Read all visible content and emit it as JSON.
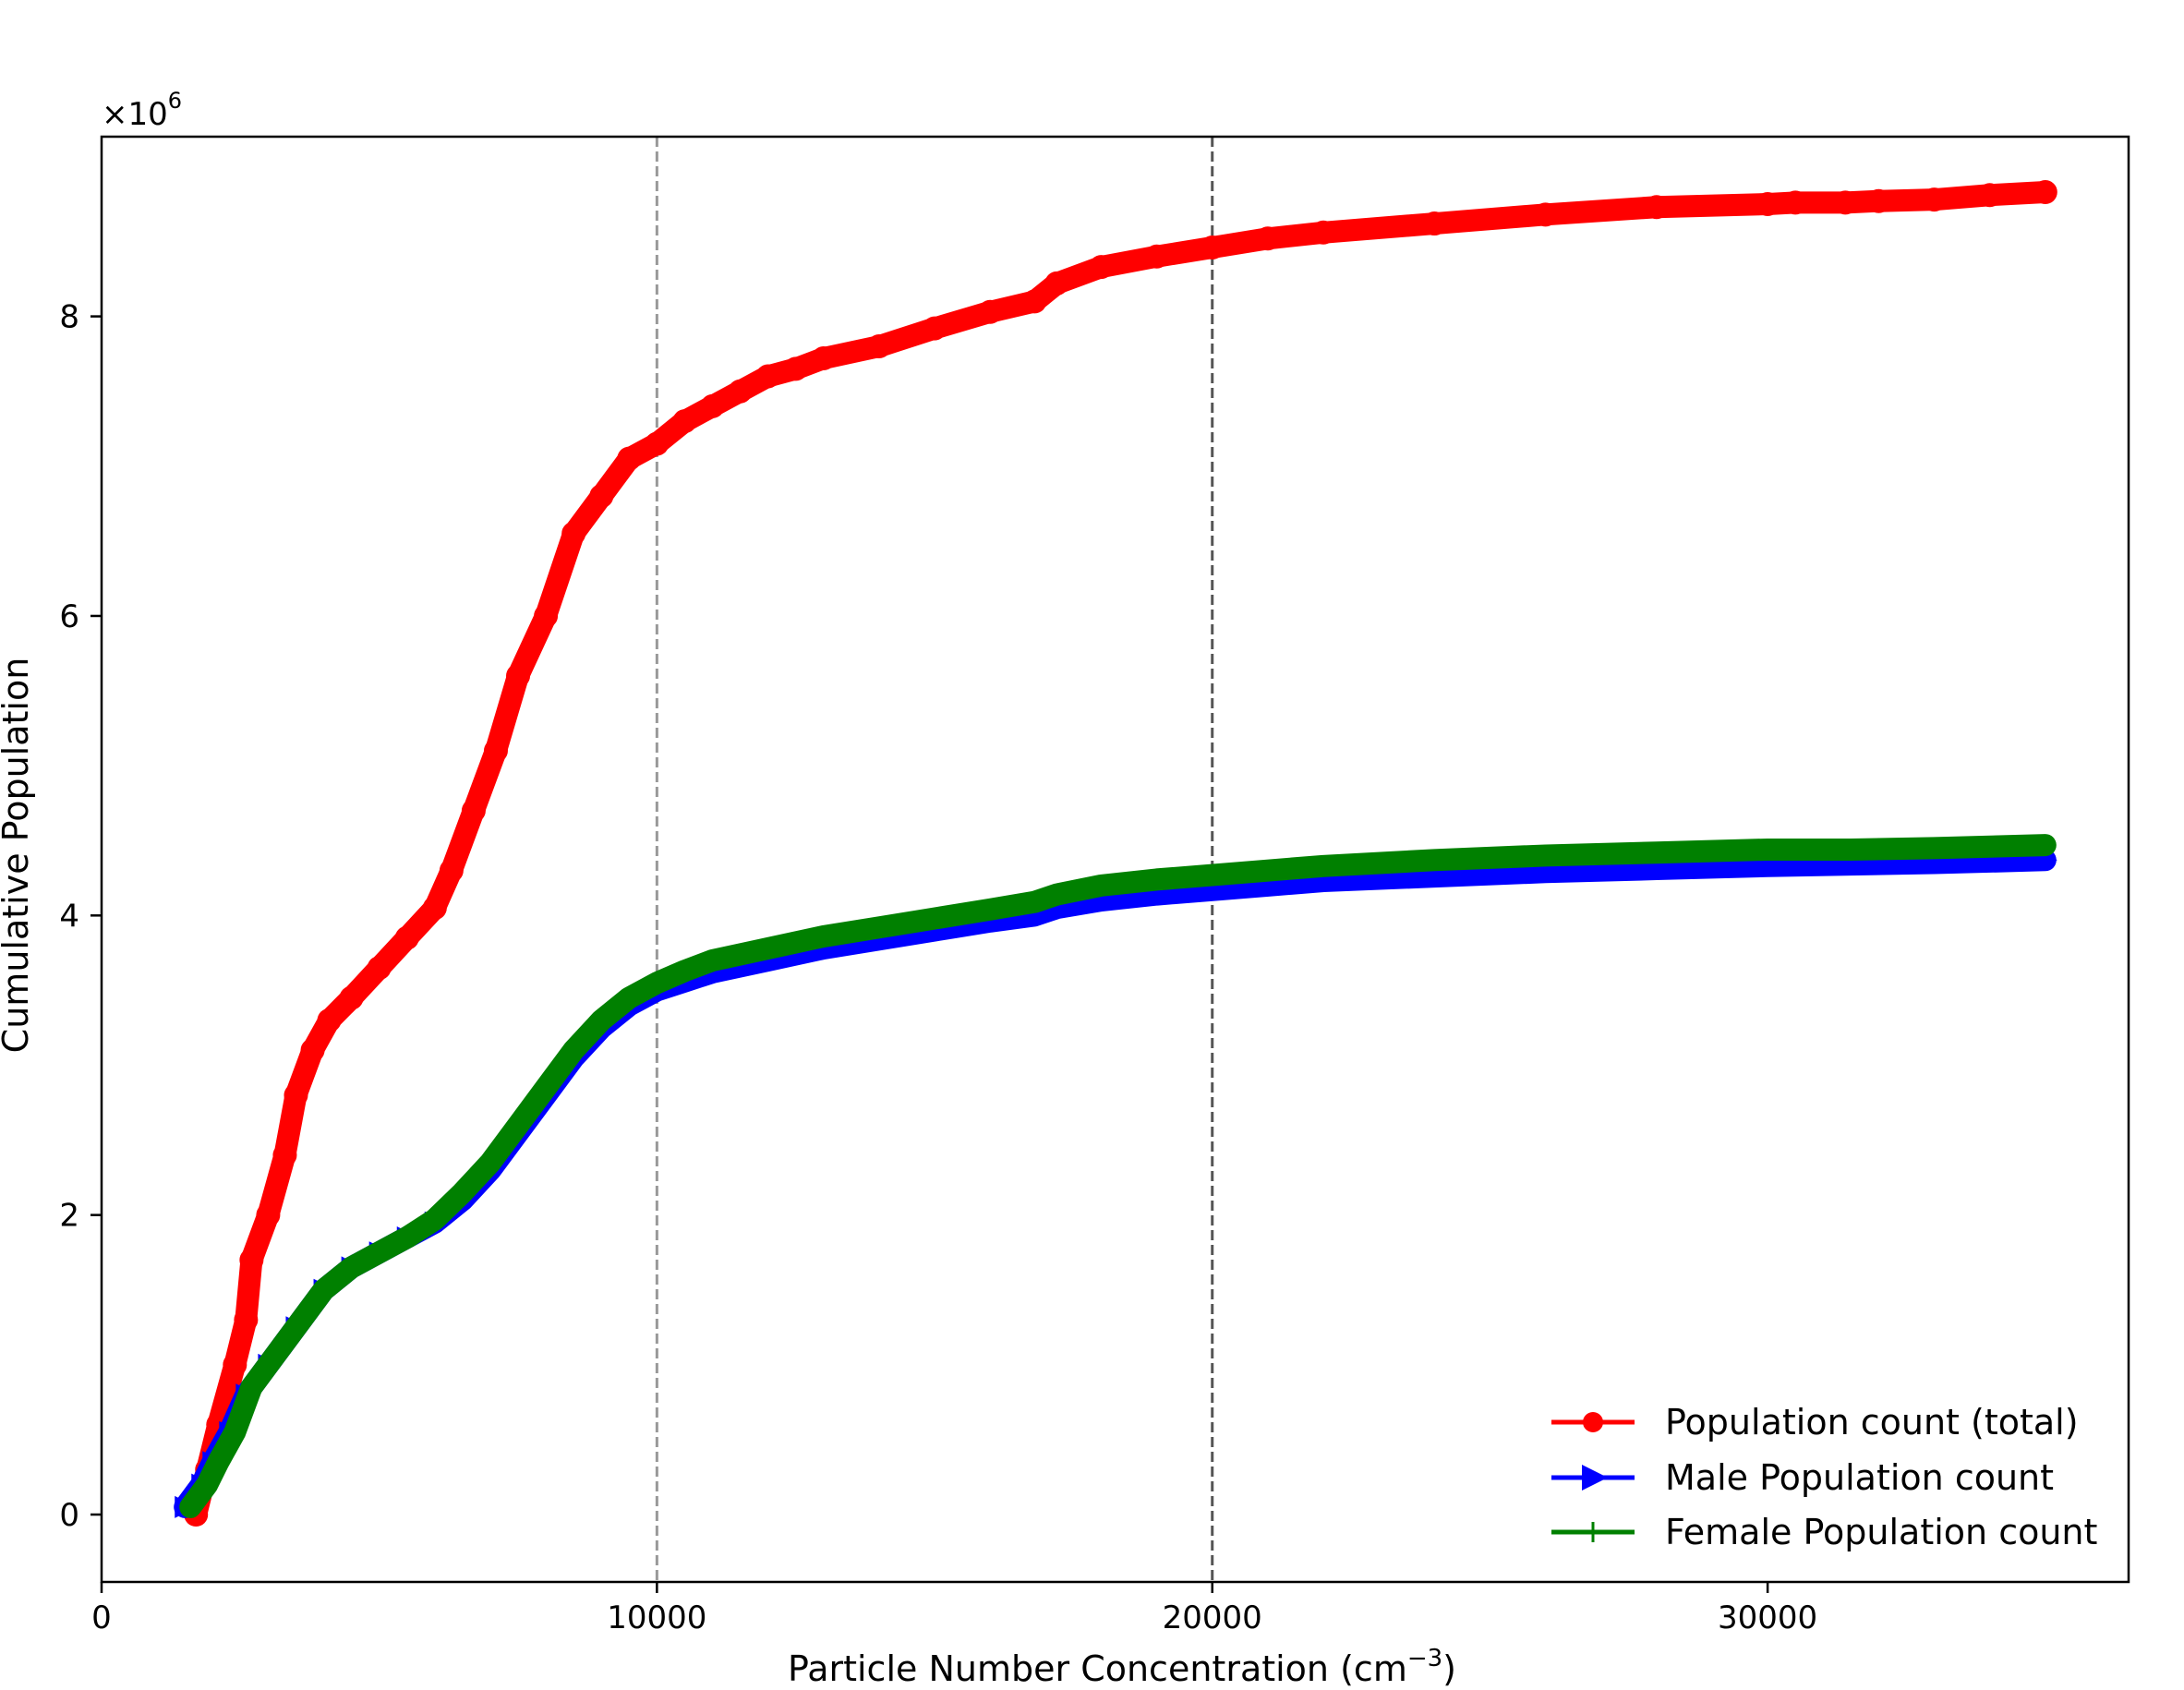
{
  "chart_data": {
    "type": "line",
    "xlabel": "Particle Number Concentration (cm",
    "xlabel_exponent": "−3",
    "xlabel_suffix": ")",
    "ylabel": "Cumulative Population",
    "offset_text": "×10",
    "offset_exponent": "6",
    "xlim": [
      0,
      36500
    ],
    "ylim": [
      -0.45,
      9.2
    ],
    "xticks": [
      0,
      10000,
      20000,
      30000
    ],
    "xtick_labels": [
      "0",
      "10000",
      "20000",
      "30000"
    ],
    "yticks": [
      0,
      2,
      4,
      6,
      8
    ],
    "ytick_labels": [
      "0",
      "2",
      "4",
      "6",
      "8"
    ],
    "reference_lines": [
      {
        "x": 10000,
        "color": "#999999"
      },
      {
        "x": 20000,
        "color": "#555555"
      }
    ],
    "legend_position": "lower right",
    "series": [
      {
        "name": "Population count (total)",
        "color": "#ff0000",
        "marker": "circle",
        "points": [
          [
            1700,
            0.0
          ],
          [
            1900,
            0.3
          ],
          [
            2100,
            0.6
          ],
          [
            2400,
            1.0
          ],
          [
            2600,
            1.3
          ],
          [
            2700,
            1.7
          ],
          [
            3000,
            2.0
          ],
          [
            3300,
            2.4
          ],
          [
            3500,
            2.8
          ],
          [
            3800,
            3.1
          ],
          [
            4100,
            3.3
          ],
          [
            4500,
            3.45
          ],
          [
            5000,
            3.65
          ],
          [
            5500,
            3.85
          ],
          [
            6000,
            4.05
          ],
          [
            6300,
            4.3
          ],
          [
            6700,
            4.7
          ],
          [
            7100,
            5.1
          ],
          [
            7500,
            5.6
          ],
          [
            8000,
            6.0
          ],
          [
            8500,
            6.55
          ],
          [
            9000,
            6.8
          ],
          [
            9500,
            7.05
          ],
          [
            10000,
            7.15
          ],
          [
            10500,
            7.3
          ],
          [
            11000,
            7.4
          ],
          [
            11500,
            7.5
          ],
          [
            12000,
            7.6
          ],
          [
            12500,
            7.65
          ],
          [
            13000,
            7.72
          ],
          [
            14000,
            7.8
          ],
          [
            15000,
            7.92
          ],
          [
            16000,
            8.03
          ],
          [
            16800,
            8.1
          ],
          [
            17200,
            8.22
          ],
          [
            18000,
            8.33
          ],
          [
            19000,
            8.4
          ],
          [
            20000,
            8.46
          ],
          [
            21000,
            8.52
          ],
          [
            22000,
            8.56
          ],
          [
            24000,
            8.62
          ],
          [
            26000,
            8.68
          ],
          [
            28000,
            8.73
          ],
          [
            30000,
            8.75
          ],
          [
            30500,
            8.76
          ],
          [
            31400,
            8.76
          ],
          [
            32000,
            8.77
          ],
          [
            33000,
            8.78
          ],
          [
            34000,
            8.81
          ],
          [
            35000,
            8.83
          ]
        ]
      },
      {
        "name": "Male Population count",
        "color": "#0000ff",
        "marker": "triangle-right",
        "points": [
          [
            1500,
            0.05
          ],
          [
            1800,
            0.2
          ],
          [
            2000,
            0.35
          ],
          [
            2300,
            0.55
          ],
          [
            2600,
            0.8
          ],
          [
            3000,
            1.0
          ],
          [
            3500,
            1.25
          ],
          [
            4000,
            1.5
          ],
          [
            4500,
            1.65
          ],
          [
            5000,
            1.75
          ],
          [
            5500,
            1.85
          ],
          [
            6000,
            1.95
          ],
          [
            6500,
            2.1
          ],
          [
            7000,
            2.3
          ],
          [
            7500,
            2.55
          ],
          [
            8000,
            2.8
          ],
          [
            8500,
            3.05
          ],
          [
            9000,
            3.25
          ],
          [
            9500,
            3.4
          ],
          [
            10000,
            3.5
          ],
          [
            10500,
            3.56
          ],
          [
            11000,
            3.62
          ],
          [
            12000,
            3.7
          ],
          [
            13000,
            3.78
          ],
          [
            14000,
            3.84
          ],
          [
            15000,
            3.9
          ],
          [
            16000,
            3.96
          ],
          [
            16800,
            4.0
          ],
          [
            17200,
            4.05
          ],
          [
            18000,
            4.1
          ],
          [
            19000,
            4.14
          ],
          [
            20000,
            4.17
          ],
          [
            21000,
            4.2
          ],
          [
            22000,
            4.23
          ],
          [
            24000,
            4.26
          ],
          [
            26000,
            4.29
          ],
          [
            28000,
            4.31
          ],
          [
            30000,
            4.33
          ],
          [
            31500,
            4.34
          ],
          [
            33000,
            4.35
          ],
          [
            35000,
            4.37
          ]
        ]
      },
      {
        "name": "Female Population count",
        "color": "#008000",
        "marker": "plus",
        "points": [
          [
            1600,
            0.05
          ],
          [
            1900,
            0.2
          ],
          [
            2100,
            0.35
          ],
          [
            2400,
            0.55
          ],
          [
            2700,
            0.85
          ],
          [
            3100,
            1.05
          ],
          [
            3600,
            1.3
          ],
          [
            4000,
            1.5
          ],
          [
            4500,
            1.65
          ],
          [
            5000,
            1.75
          ],
          [
            5500,
            1.85
          ],
          [
            6000,
            1.97
          ],
          [
            6500,
            2.15
          ],
          [
            7000,
            2.35
          ],
          [
            7500,
            2.6
          ],
          [
            8000,
            2.85
          ],
          [
            8500,
            3.1
          ],
          [
            9000,
            3.3
          ],
          [
            9500,
            3.45
          ],
          [
            10000,
            3.55
          ],
          [
            10500,
            3.63
          ],
          [
            11000,
            3.7
          ],
          [
            12000,
            3.78
          ],
          [
            13000,
            3.86
          ],
          [
            14000,
            3.92
          ],
          [
            15000,
            3.98
          ],
          [
            16000,
            4.04
          ],
          [
            16800,
            4.09
          ],
          [
            17200,
            4.14
          ],
          [
            18000,
            4.2
          ],
          [
            19000,
            4.24
          ],
          [
            20000,
            4.27
          ],
          [
            21000,
            4.3
          ],
          [
            22000,
            4.33
          ],
          [
            24000,
            4.37
          ],
          [
            26000,
            4.4
          ],
          [
            28000,
            4.42
          ],
          [
            30000,
            4.44
          ],
          [
            31500,
            4.44
          ],
          [
            33000,
            4.45
          ],
          [
            35000,
            4.47
          ]
        ]
      }
    ]
  }
}
